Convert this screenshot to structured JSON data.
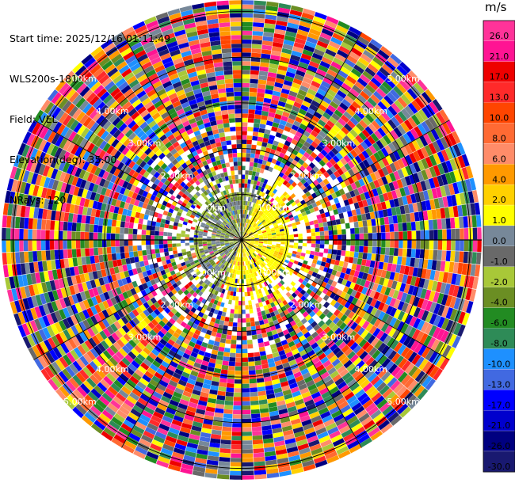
{
  "header": {
    "start_time": "Start time: 2025/12/16 01:11:49",
    "instrument": "WLS200s-181",
    "field": "Field: VEL",
    "elevation": "Elevation(deg): 35.00",
    "nrays": "NRays: 120"
  },
  "colorbar": {
    "unit": "m/s",
    "ticks": [
      "26.0",
      "21.0",
      "17.0",
      "13.0",
      "10.0",
      "8.0",
      "6.0",
      "4.0",
      "2.0",
      "1.0",
      "0.0",
      "-1.0",
      "-2.0",
      "-4.0",
      "-6.0",
      "-8.0",
      "-10.0",
      "-13.0",
      "-17.0",
      "-21.0",
      "-26.0",
      "-30.0"
    ],
    "colors": [
      "#ff3399",
      "#ff1493",
      "#ee0000",
      "#ff2a2a",
      "#ff4500",
      "#ff6a33",
      "#ff8c69",
      "#ff9900",
      "#ffd000",
      "#ffff00",
      "#778899",
      "#696969",
      "#a8c838",
      "#6b8e23",
      "#228b22",
      "#2e8b57",
      "#1e90ff",
      "#4169e1",
      "#0000ff",
      "#0000cd",
      "#000080",
      "#191970"
    ]
  },
  "chart_data": {
    "type": "heatmap",
    "title": "",
    "subtitle": "",
    "projection": "polar-ppi",
    "field": "VEL",
    "units": "m/s",
    "n_rays": 120,
    "elevation_deg": 35.0,
    "range_rings_km": [
      1.0,
      2.0,
      3.0,
      4.0,
      5.0
    ],
    "range_labels": [
      "1.00km",
      "2.00km",
      "3.00km",
      "4.00km",
      "5.00km"
    ],
    "max_range_km": 5.25,
    "color_levels": [
      26.0,
      21.0,
      17.0,
      13.0,
      10.0,
      8.0,
      6.0,
      4.0,
      2.0,
      1.0,
      0.0,
      -1.0,
      -2.0,
      -4.0,
      -6.0,
      -8.0,
      -10.0,
      -13.0,
      -17.0,
      -21.0,
      -26.0,
      -30.0
    ],
    "inner_pattern": "near-field returns within ~1 km: yellow (2.0 to 4.0 m/s) to the east/south-east, olive/grey (-2.0 to 0.0 m/s) to the west/north-west; beyond ~1.5 km the field is noise spanning all levels",
    "grid": true
  }
}
